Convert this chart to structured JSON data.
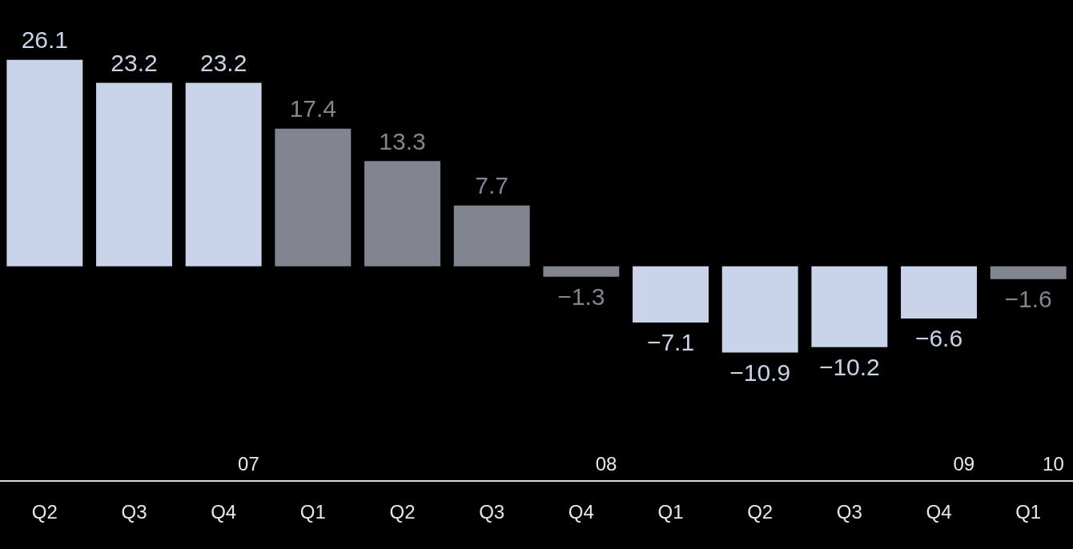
{
  "chart_data": {
    "type": "bar",
    "categories": [
      "Q2",
      "Q3",
      "Q4",
      "Q1",
      "Q2",
      "Q3",
      "Q4",
      "Q1",
      "Q2",
      "Q3",
      "Q4",
      "Q1"
    ],
    "values": [
      26.1,
      23.2,
      23.2,
      17.4,
      13.3,
      7.7,
      -1.3,
      -7.1,
      -10.9,
      -10.2,
      -6.6,
      -1.6
    ],
    "colors": [
      "#c9d3e8",
      "#c9d3e8",
      "#c9d3e8",
      "#80858f",
      "#80858f",
      "#80858f",
      "#80858f",
      "#c9d3e8",
      "#c9d3e8",
      "#c9d3e8",
      "#c9d3e8",
      "#80858f"
    ],
    "value_labels": [
      "26.1",
      "23.2",
      "23.2",
      "17.4",
      "13.3",
      "7.7",
      "−1.3",
      "−7.1",
      "−10.9",
      "−10.2",
      "−6.6",
      "−1.6"
    ],
    "annotations": [
      "07",
      "08",
      "09",
      "10"
    ],
    "grid": false,
    "legend": false
  }
}
